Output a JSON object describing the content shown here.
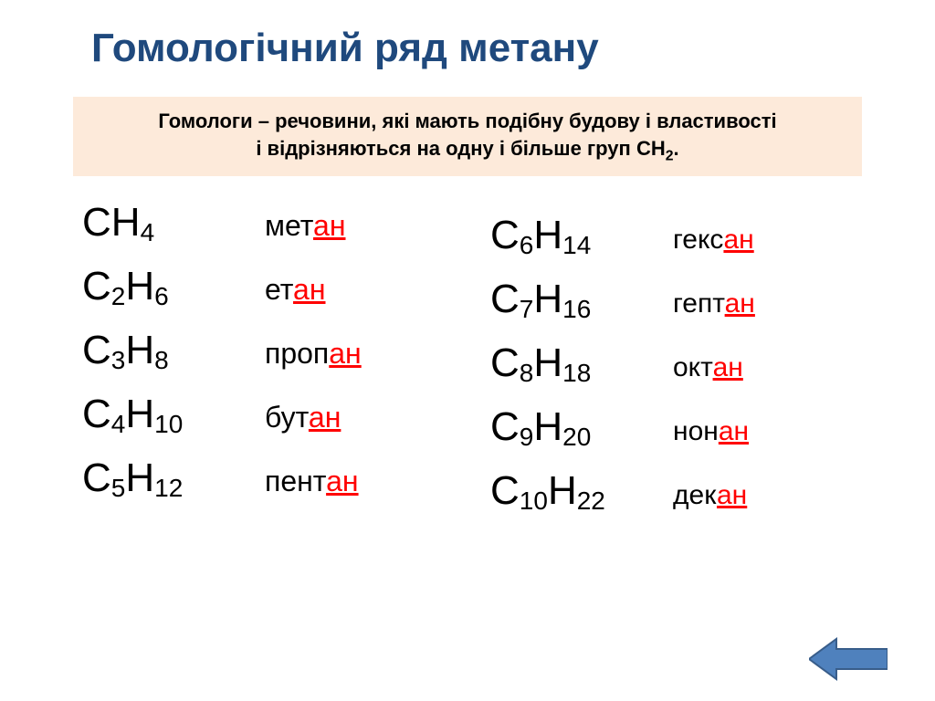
{
  "title_text": "Гомологічний  ряд метану",
  "title_color": "#1f497d",
  "definition": {
    "line1_prefix": "Гомологи – ",
    "line1_rest": "речовини, які мають подібну будову і властивості",
    "line2_before_formula": "і відрізняються на одну і більше груп ",
    "formula_main": "СН",
    "formula_sub": "2",
    "line2_after": ".",
    "bg_color": "#fdeada",
    "text_color": "#000000"
  },
  "formula_color": "#000000",
  "name_color": "#000000",
  "suffix_color": "#ff0000",
  "left": [
    {
      "p1": "С",
      "s1": "",
      "p2": "Н",
      "s2": "4",
      "root": "мет",
      "suffix": "ан"
    },
    {
      "p1": "С",
      "s1": "2",
      "p2": "Н",
      "s2": "6",
      "root": "ет",
      "suffix": "ан"
    },
    {
      "p1": "С",
      "s1": "3",
      "p2": "Н",
      "s2": "8",
      "root": "проп",
      "suffix": "ан"
    },
    {
      "p1": "С",
      "s1": "4",
      "p2": "Н",
      "s2": "10",
      "root": "бут",
      "suffix": "ан"
    },
    {
      "p1": "С",
      "s1": "5",
      "p2": "Н",
      "s2": "12",
      "root": "пент",
      "suffix": "ан"
    }
  ],
  "right": [
    {
      "p1": "С",
      "s1": "6",
      "p2": "Н",
      "s2": "14",
      "root": "гекс",
      "suffix": "ан"
    },
    {
      "p1": "С",
      "s1": "7",
      "p2": "Н",
      "s2": "16",
      "root": "гепт",
      "suffix": "ан"
    },
    {
      "p1": "С",
      "s1": "8",
      "p2": "Н",
      "s2": "18",
      "root": "окт",
      "suffix": "ан"
    },
    {
      "p1": "С",
      "s1": "9",
      "p2": "Н",
      "s2": "20",
      "root": "нон",
      "suffix": "ан"
    },
    {
      "p1": "С",
      "s1": "10",
      "p2": "Н",
      "s2": "22",
      "root": "дек",
      "suffix": "ан"
    }
  ],
  "arrow": {
    "fill": "#4f81bd",
    "stroke": "#385d8a",
    "stroke_width": 2
  }
}
